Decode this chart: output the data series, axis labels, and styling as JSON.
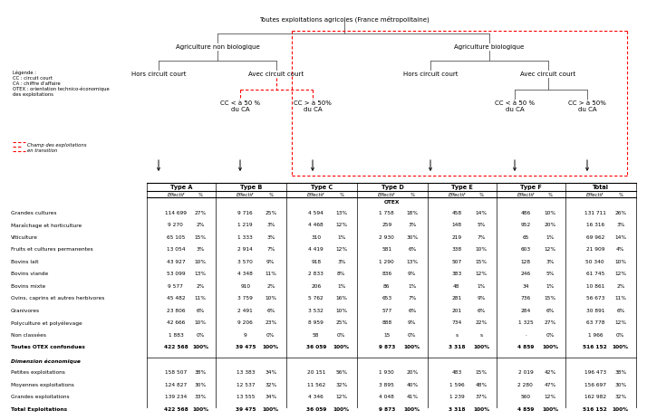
{
  "title": "Toutes exploitations agricoles (France métropolitaine)",
  "legend_text": "Légende :\nCC : circuit court\nCA : chiffre d'affaire\nOTEX : orientation technico-économique\ndes exploitations",
  "champ_text": "Champ des exploitations\nen transition",
  "tree": {
    "root": "Toutes exploitations agricoles (France métropolitaine)",
    "l1_left": "Agriculture non biologique",
    "l1_right": "Agriculture biologique",
    "l2_1": "Hors circuit court",
    "l2_2": "Avec circuit court",
    "l2_3": "Hors circuit court",
    "l2_4": "Avec circuit court",
    "l3_1": "CC < à 50 %\ndu CA",
    "l3_2": "CC > à 50%\ndu CA",
    "l3_3": "CC < à 50 %\ndu CA",
    "l3_4": "CC > à 50%\ndu CA"
  },
  "col_type_labels": [
    "Type A",
    "Type B",
    "Type C",
    "Type D",
    "Type E",
    "Type F",
    "Total"
  ],
  "section_otex": "OTEX",
  "rows": [
    [
      "Grandes cultures",
      "114 699",
      "27%",
      "9 716",
      "25%",
      "4 594",
      "13%",
      "1 758",
      "18%",
      "458",
      "14%",
      "486",
      "10%",
      "131 711",
      "26%"
    ],
    [
      "Maraîchage et horticulture",
      "9 270",
      "2%",
      "1 219",
      "3%",
      "4 468",
      "12%",
      "259",
      "3%",
      "148",
      "5%",
      "952",
      "20%",
      "16 316",
      "3%"
    ],
    [
      "Viticulture",
      "65 105",
      "15%",
      "1 333",
      "3%",
      "310",
      "1%",
      "2 930",
      "30%",
      "219",
      "7%",
      "65",
      "1%",
      "69 962",
      "14%"
    ],
    [
      "Fruits et cultures permanentes",
      "13 054",
      "3%",
      "2 914",
      "7%",
      "4 419",
      "12%",
      "581",
      "6%",
      "338",
      "10%",
      "603",
      "12%",
      "21 909",
      "4%"
    ],
    [
      "Bovins lait",
      "43 927",
      "10%",
      "3 570",
      "9%",
      "918",
      "3%",
      "1 290",
      "13%",
      "507",
      "15%",
      "128",
      "3%",
      "50 340",
      "10%"
    ],
    [
      "Bovins viande",
      "53 099",
      "13%",
      "4 348",
      "11%",
      "2 833",
      "8%",
      "836",
      "9%",
      "383",
      "12%",
      "246",
      "5%",
      "61 745",
      "12%"
    ],
    [
      "Bovins mixte",
      "9 577",
      "2%",
      "910",
      "2%",
      "206",
      "1%",
      "86",
      "1%",
      "48",
      "1%",
      "34",
      "1%",
      "10 861",
      "2%"
    ],
    [
      "Ovins, caprins et autres herbivores",
      "45 482",
      "11%",
      "3 759",
      "10%",
      "5 762",
      "16%",
      "653",
      "7%",
      "281",
      "9%",
      "736",
      "15%",
      "56 673",
      "11%"
    ],
    [
      "Granivores",
      "23 806",
      "6%",
      "2 491",
      "6%",
      "3 532",
      "10%",
      "577",
      "6%",
      "201",
      "6%",
      "284",
      "6%",
      "30 891",
      "6%"
    ],
    [
      "Polyculture et polyélevage",
      "42 666",
      "10%",
      "9 206",
      "23%",
      "8 959",
      "25%",
      "888",
      "9%",
      "734",
      "22%",
      "1 325",
      "27%",
      "63 778",
      "12%"
    ],
    [
      "Non classées",
      "1 883",
      "0%",
      "9",
      "0%",
      "58",
      "0%",
      "15",
      "0%",
      "s",
      "s",
      "·",
      "0%",
      "1 966",
      "0%"
    ],
    [
      "Toutes OTEX confondues",
      "422 568",
      "100%",
      "39 475",
      "100%",
      "36 059",
      "100%",
      "9 873",
      "100%",
      "3 318",
      "100%",
      "4 859",
      "100%",
      "516 152",
      "100%"
    ]
  ],
  "section_dim": "Dimension économique",
  "rows_dim": [
    [
      "Petites exploitations",
      "158 507",
      "38%",
      "13 383",
      "34%",
      "20 151",
      "56%",
      "1 930",
      "20%",
      "483",
      "15%",
      "2 019",
      "42%",
      "196 473",
      "38%"
    ],
    [
      "Moyennes exploitations",
      "124 827",
      "30%",
      "12 537",
      "32%",
      "11 562",
      "32%",
      "3 895",
      "40%",
      "1 596",
      "48%",
      "2 280",
      "47%",
      "156 697",
      "30%"
    ],
    [
      "Grandes exploitations",
      "139 234",
      "33%",
      "13 555",
      "34%",
      "4 346",
      "12%",
      "4 048",
      "41%",
      "1 239",
      "37%",
      "560",
      "12%",
      "162 982",
      "32%"
    ],
    [
      "Total Exploitations",
      "422 568",
      "100%",
      "39 475",
      "100%",
      "36 059",
      "100%",
      "9 873",
      "100%",
      "3 318",
      "100%",
      "4 859",
      "100%",
      "516 152",
      "100%"
    ]
  ]
}
